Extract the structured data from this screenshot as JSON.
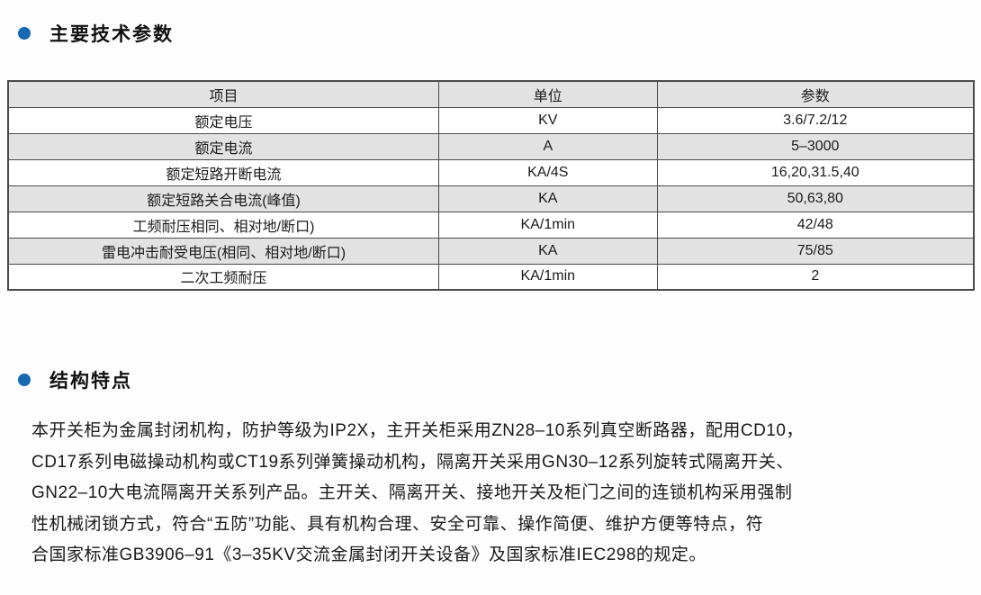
{
  "colors": {
    "accent_blue": "#1668b0",
    "row_gray": "#e2e2e2",
    "table_border": "#4a4a4a",
    "text": "#1a1a1a",
    "page_bg": "#fdfdfd"
  },
  "sections": {
    "tech_params": {
      "title": "主要技术参数"
    },
    "structure": {
      "title": "结构特点"
    }
  },
  "table": {
    "headers": [
      "项目",
      "单位",
      "参数"
    ],
    "rows": [
      [
        "额定电压",
        "KV",
        "3.6/7.2/12"
      ],
      [
        "额定电流",
        "A",
        "5–3000"
      ],
      [
        "额定短路开断电流",
        "KA/4S",
        "16,20,31.5,40"
      ],
      [
        "额定短路关合电流(峰值)",
        "KA",
        "50,63,80"
      ],
      [
        "工频耐压相同、相对地/断口)",
        "KA/1min",
        "42/48"
      ],
      [
        "雷电冲击耐受电压(相同、相对地/断口)",
        "KA",
        "75/85"
      ],
      [
        "二次工频耐压",
        "KA/1min",
        "2"
      ]
    ]
  },
  "structure_text": {
    "lines": [
      "本开关柜为金属封闭机构，防护等级为IP2X，主开关柜采用ZN28–10系列真空断路器，配用CD10，",
      "CD17系列电磁操动机构或CT19系列弹簧操动机构，隔离开关采用GN30–12系列旋转式隔离开关、",
      "GN22–10大电流隔离开关系列产品。主开关、隔离开关、接地开关及柜门之间的连锁机构采用强制",
      "性机械闭锁方式，符合“五防”功能、具有机构合理、安全可靠、操作简便、维护方便等特点，符",
      "合国家标准GB3906–91《3–35KV交流金属封闭开关设备》及国家标准IEC298的规定。"
    ]
  }
}
